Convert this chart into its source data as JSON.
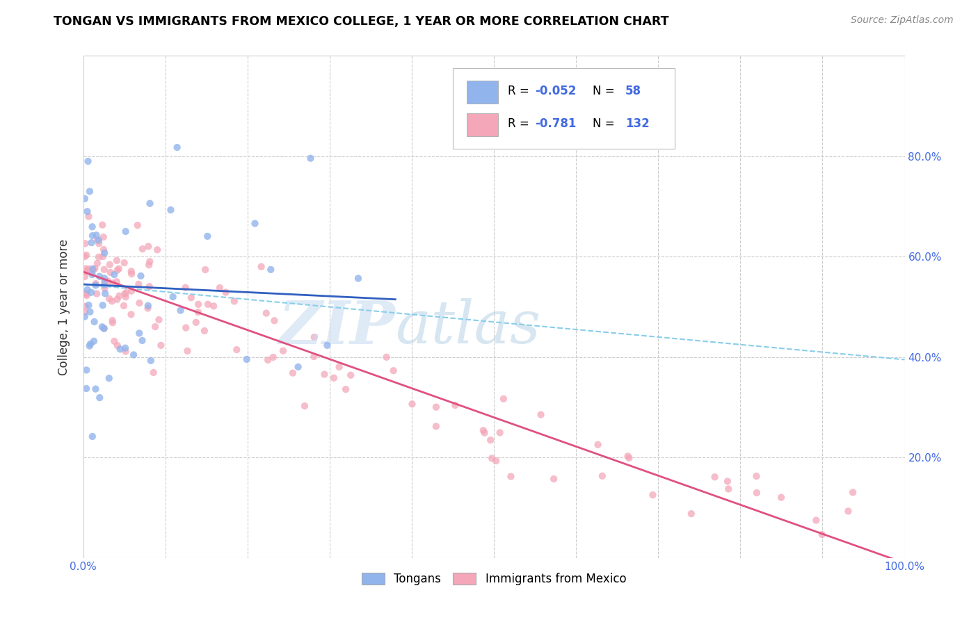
{
  "title": "TONGAN VS IMMIGRANTS FROM MEXICO COLLEGE, 1 YEAR OR MORE CORRELATION CHART",
  "source": "Source: ZipAtlas.com",
  "ylabel": "College, 1 year or more",
  "xlim": [
    0.0,
    1.0
  ],
  "ylim": [
    0.0,
    1.0
  ],
  "legend_R1": "-0.052",
  "legend_N1": "58",
  "legend_R2": "-0.781",
  "legend_N2": "132",
  "color_tongan": "#92B4EC",
  "color_mexico": "#F4A7B9",
  "color_tongan_line": "#3060C0",
  "color_mexico_line": "#E05080",
  "color_dashed_line": "#87CEEB",
  "tongan_line_x": [
    0.0,
    0.38
  ],
  "tongan_line_y": [
    0.545,
    0.515
  ],
  "dashed_line_x": [
    0.0,
    1.0
  ],
  "dashed_line_y": [
    0.545,
    0.395
  ],
  "mexico_line_x": [
    0.0,
    1.0
  ],
  "mexico_line_y": [
    0.57,
    -0.01
  ]
}
